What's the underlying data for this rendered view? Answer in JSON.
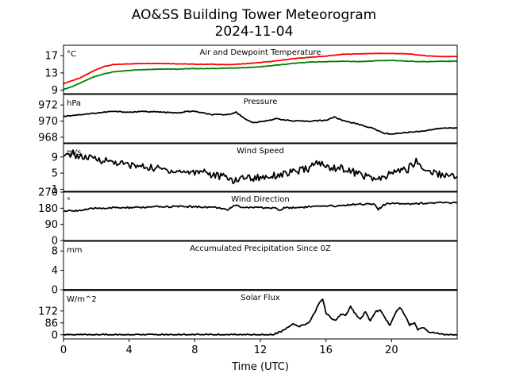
{
  "title_line1": "AO&SS Building Tower Meteorogram",
  "title_line2": "2024-11-04",
  "x_axis": {
    "label": "Time (UTC)",
    "ticks": [
      0,
      4,
      8,
      12,
      16,
      20
    ],
    "range": [
      0,
      24
    ]
  },
  "colors": {
    "air_temp": "#ff0000",
    "dewpoint": "#008000",
    "default": "#000000"
  },
  "chart_data": [
    {
      "type": "line",
      "title": "Air and Dewpoint Temperature",
      "unit": "°C",
      "ylim": [
        8.2,
        19.4
      ],
      "yticks": [
        9,
        13,
        17
      ],
      "series": [
        {
          "key": "air",
          "color": "#ff0000",
          "points": [
            [
              0,
              10.5
            ],
            [
              0.5,
              11.2
            ],
            [
              1,
              11.8
            ],
            [
              1.5,
              12.8
            ],
            [
              2,
              13.8
            ],
            [
              2.5,
              14.5
            ],
            [
              3,
              14.9
            ],
            [
              4,
              15.1
            ],
            [
              5,
              15.2
            ],
            [
              6,
              15.2
            ],
            [
              7,
              15.1
            ],
            [
              8,
              15.0
            ],
            [
              9,
              15.0
            ],
            [
              10,
              14.9
            ],
            [
              11,
              15.1
            ],
            [
              12,
              15.4
            ],
            [
              13,
              15.8
            ],
            [
              14,
              16.3
            ],
            [
              15,
              16.6
            ],
            [
              16,
              16.9
            ],
            [
              17,
              17.3
            ],
            [
              18,
              17.4
            ],
            [
              19,
              17.5
            ],
            [
              20,
              17.5
            ],
            [
              21,
              17.4
            ],
            [
              22,
              17.0
            ],
            [
              23,
              16.8
            ],
            [
              24,
              16.8
            ]
          ]
        },
        {
          "key": "dew",
          "color": "#008000",
          "points": [
            [
              0,
              9.2
            ],
            [
              0.5,
              9.8
            ],
            [
              1,
              10.6
            ],
            [
              1.5,
              11.5
            ],
            [
              2,
              12.3
            ],
            [
              2.5,
              12.8
            ],
            [
              3,
              13.2
            ],
            [
              4,
              13.6
            ],
            [
              5,
              13.8
            ],
            [
              6,
              13.9
            ],
            [
              7,
              13.9
            ],
            [
              8,
              14.0
            ],
            [
              9,
              14.0
            ],
            [
              10,
              14.1
            ],
            [
              11,
              14.2
            ],
            [
              12,
              14.4
            ],
            [
              13,
              14.8
            ],
            [
              14,
              15.2
            ],
            [
              15,
              15.5
            ],
            [
              16,
              15.6
            ],
            [
              17,
              15.7
            ],
            [
              18,
              15.6
            ],
            [
              19,
              15.8
            ],
            [
              20,
              15.9
            ],
            [
              21,
              15.7
            ],
            [
              22,
              15.6
            ],
            [
              23,
              15.7
            ],
            [
              24,
              15.7
            ]
          ]
        }
      ]
    },
    {
      "type": "line",
      "title": "Pressure",
      "unit": "hPa",
      "ylim": [
        967.3,
        973.3
      ],
      "yticks": [
        968,
        970,
        972
      ],
      "series": [
        {
          "key": "pres",
          "color": "#000000",
          "points": [
            [
              0,
              970.6
            ],
            [
              1,
              970.8
            ],
            [
              2,
              971.0
            ],
            [
              3,
              971.2
            ],
            [
              4,
              971.1
            ],
            [
              5,
              971.2
            ],
            [
              6,
              971.1
            ],
            [
              7,
              971.0
            ],
            [
              7.5,
              971.2
            ],
            [
              8,
              971.2
            ],
            [
              9,
              970.8
            ],
            [
              10,
              970.8
            ],
            [
              10.5,
              971.1
            ],
            [
              11,
              970.4
            ],
            [
              11.5,
              969.8
            ],
            [
              12,
              969.9
            ],
            [
              13,
              970.3
            ],
            [
              14,
              970.0
            ],
            [
              15,
              970.0
            ],
            [
              16,
              970.1
            ],
            [
              16.5,
              970.5
            ],
            [
              17,
              970.1
            ],
            [
              18,
              969.6
            ],
            [
              19,
              969.0
            ],
            [
              19.5,
              968.5
            ],
            [
              20,
              968.4
            ],
            [
              21,
              968.6
            ],
            [
              22,
              968.8
            ],
            [
              23,
              969.1
            ],
            [
              24,
              969.2
            ]
          ]
        }
      ]
    },
    {
      "type": "line",
      "title": "Wind Speed",
      "unit": "m/s",
      "ylim": [
        0.5,
        12.3
      ],
      "yticks": [
        1,
        5,
        9
      ],
      "series": [
        {
          "key": "wspd",
          "color": "#000000",
          "points": [
            [
              0,
              8.6
            ],
            [
              0.5,
              10.0
            ],
            [
              1,
              9.0
            ],
            [
              2,
              8.5
            ],
            [
              3,
              7.8
            ],
            [
              4,
              7.0
            ],
            [
              5,
              6.5
            ],
            [
              6,
              6.0
            ],
            [
              7,
              5.4
            ],
            [
              8,
              5.2
            ],
            [
              8.5,
              5.8
            ],
            [
              9,
              4.6
            ],
            [
              10,
              3.9
            ],
            [
              10.5,
              3.0
            ],
            [
              11,
              4.2
            ],
            [
              11.5,
              3.7
            ],
            [
              12,
              4.0
            ],
            [
              13,
              4.5
            ],
            [
              14,
              5.2
            ],
            [
              15,
              6.2
            ],
            [
              15.5,
              7.8
            ],
            [
              16,
              6.5
            ],
            [
              17,
              6.2
            ],
            [
              18,
              4.8
            ],
            [
              19,
              3.5
            ],
            [
              19.5,
              3.5
            ],
            [
              20,
              5.2
            ],
            [
              21,
              6.0
            ],
            [
              21.5,
              8.0
            ],
            [
              22,
              5.8
            ],
            [
              23,
              4.7
            ],
            [
              24,
              4.2
            ]
          ]
        }
      ]
    },
    {
      "type": "line",
      "title": "Wind Direction",
      "unit": "°",
      "ylim": [
        0,
        270
      ],
      "yticks": [
        0,
        90,
        180,
        270
      ],
      "series": [
        {
          "key": "wdir",
          "color": "#000000",
          "points": [
            [
              0,
              163
            ],
            [
              1,
              168
            ],
            [
              2,
              180
            ],
            [
              3,
              182
            ],
            [
              4,
              183
            ],
            [
              5,
              185
            ],
            [
              6,
              188
            ],
            [
              7,
              190
            ],
            [
              8,
              188
            ],
            [
              9,
              186
            ],
            [
              9.7,
              180
            ],
            [
              10,
              165
            ],
            [
              10.4,
              198
            ],
            [
              11,
              185
            ],
            [
              12,
              184
            ],
            [
              13,
              180
            ],
            [
              13.2,
              165
            ],
            [
              13.5,
              185
            ],
            [
              14,
              183
            ],
            [
              15,
              188
            ],
            [
              16,
              190
            ],
            [
              17,
              195
            ],
            [
              18,
              205
            ],
            [
              19,
              200
            ],
            [
              19.2,
              172
            ],
            [
              19.5,
              196
            ],
            [
              20,
              210
            ],
            [
              21,
              205
            ],
            [
              22,
              208
            ],
            [
              23,
              210
            ],
            [
              24,
              210
            ]
          ]
        }
      ]
    },
    {
      "type": "line",
      "title": "Accumulated Precipitation Since 0Z",
      "unit": "mm",
      "ylim": [
        0,
        10
      ],
      "yticks": [
        0,
        4,
        8
      ],
      "series": [
        {
          "key": "precip",
          "color": "#000000",
          "points": [
            [
              0,
              0
            ],
            [
              24,
              0
            ]
          ]
        }
      ]
    },
    {
      "type": "line",
      "title": "Solar Flux",
      "unit": "W/m^2",
      "ylim": [
        -30,
        320
      ],
      "yticks": [
        0,
        86,
        172
      ],
      "series": [
        {
          "key": "solar",
          "color": "#000000",
          "points": [
            [
              0,
              0
            ],
            [
              12.7,
              0
            ],
            [
              13.2,
              20
            ],
            [
              13.7,
              55
            ],
            [
              14,
              75
            ],
            [
              14.4,
              60
            ],
            [
              14.8,
              80
            ],
            [
              15,
              95
            ],
            [
              15.3,
              160
            ],
            [
              15.6,
              230
            ],
            [
              15.8,
              260
            ],
            [
              16,
              160
            ],
            [
              16.3,
              120
            ],
            [
              16.6,
              105
            ],
            [
              16.9,
              150
            ],
            [
              17.2,
              140
            ],
            [
              17.5,
              205
            ],
            [
              17.8,
              150
            ],
            [
              18.1,
              110
            ],
            [
              18.4,
              165
            ],
            [
              18.7,
              95
            ],
            [
              19,
              165
            ],
            [
              19.3,
              180
            ],
            [
              19.6,
              120
            ],
            [
              19.9,
              70
            ],
            [
              20.2,
              150
            ],
            [
              20.5,
              200
            ],
            [
              20.8,
              140
            ],
            [
              21.1,
              70
            ],
            [
              21.4,
              90
            ],
            [
              21.6,
              40
            ],
            [
              21.9,
              55
            ],
            [
              22.3,
              20
            ],
            [
              22.8,
              8
            ],
            [
              23.2,
              0
            ],
            [
              24,
              0
            ]
          ]
        }
      ]
    }
  ]
}
